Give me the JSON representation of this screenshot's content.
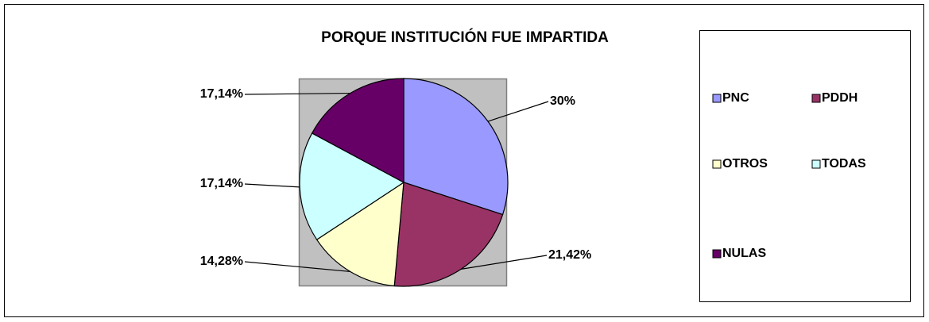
{
  "chart_data": {
    "type": "pie",
    "title": "PORQUE INSTITUCIÓN FUE IMPARTIDA",
    "categories": [
      "PNC",
      "PDDH",
      "OTROS",
      "TODAS",
      "NULAS"
    ],
    "values": [
      30,
      21.42,
      14.28,
      17.14,
      17.14
    ],
    "value_labels": [
      "30%",
      "21,42%",
      "14,28%",
      "17,14%",
      "17,14%"
    ],
    "colors": [
      "#9999ff",
      "#993366",
      "#ffffcc",
      "#ccffff",
      "#660066"
    ],
    "legend": "right"
  }
}
